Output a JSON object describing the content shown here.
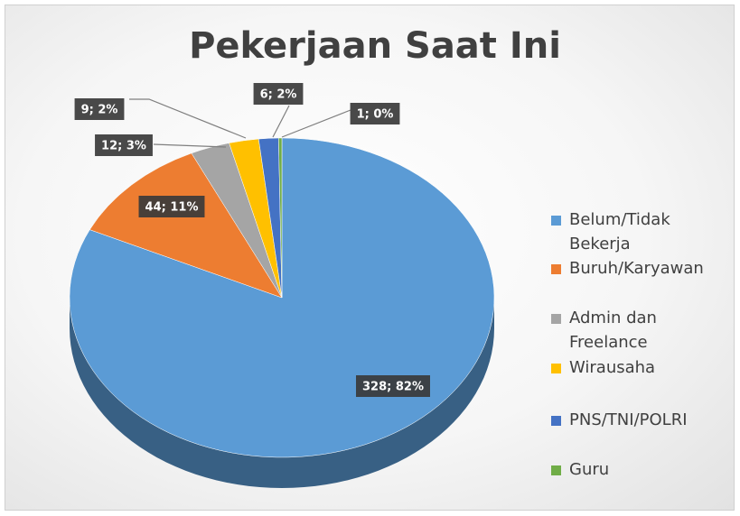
{
  "chart_data": {
    "type": "pie",
    "title": "Pekerjaan Saat Ini",
    "categories": [
      "Belum/Tidak Bekerja",
      "Buruh/Karyawan",
      "Admin dan Freelance",
      "Wirausaha",
      "PNS/TNI/POLRI",
      "Guru"
    ],
    "values": [
      328,
      44,
      12,
      9,
      6,
      1
    ],
    "value_labels": [
      "328; 82%",
      "44; 11%",
      "12; 3%",
      "9; 2%",
      "6; 2%",
      "1; 0%"
    ],
    "colors": [
      "#5b9bd5",
      "#ed7d31",
      "#a5a5a5",
      "#ffc000",
      "#4472c4",
      "#70ad47"
    ]
  }
}
